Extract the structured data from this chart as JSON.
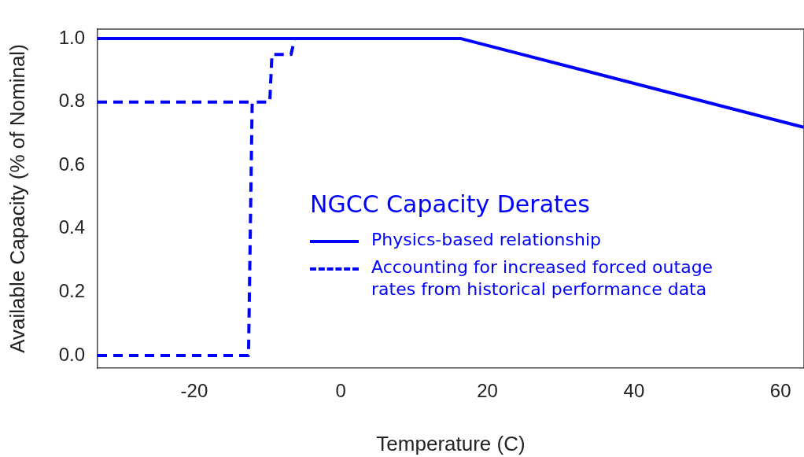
{
  "chart_data": {
    "type": "line",
    "xlabel": "Temperature (C)",
    "ylabel": "Available Capacity (% of Nominal)",
    "legend_title": "NGCC Capacity Derates",
    "xlim": [
      -33.2,
      63.2
    ],
    "ylim": [
      -0.04,
      1.03
    ],
    "xticks": [
      -20,
      0,
      20,
      40,
      60
    ],
    "yticks": [
      {
        "value": 0,
        "label": "0.0"
      },
      {
        "value": 0.2,
        "label": "0.2"
      },
      {
        "value": 0.4,
        "label": "0.4"
      },
      {
        "value": 0.6,
        "label": "0.6"
      },
      {
        "value": 0.8,
        "label": "0.8"
      },
      {
        "value": 1,
        "label": "1.0"
      }
    ],
    "grid": false,
    "legend": "right",
    "marker": "none",
    "series": [
      {
        "name": "Physics-based relationship",
        "color": "#0000ff",
        "line_style": "solid",
        "x": [
          -33.2,
          16.4,
          63.2
        ],
        "values": [
          1,
          1,
          0.72
        ]
      },
      {
        "name": "Accounting for increased forced outage rates from historical performance data",
        "color": "#0000ff",
        "line_style": "dashed",
        "x": [
          -33.2,
          -12.6,
          -12.1,
          -9.7,
          -9.4,
          -6.8,
          -6.3
        ],
        "values": [
          0,
          0,
          0.8,
          0.8,
          0.95,
          0.95,
          1
        ]
      },
      {
        "color": "#0000ff",
        "line_style": "dashed",
        "x": [
          -33.2,
          -12.1
        ],
        "values": [
          0.8,
          0.8
        ]
      }
    ]
  }
}
